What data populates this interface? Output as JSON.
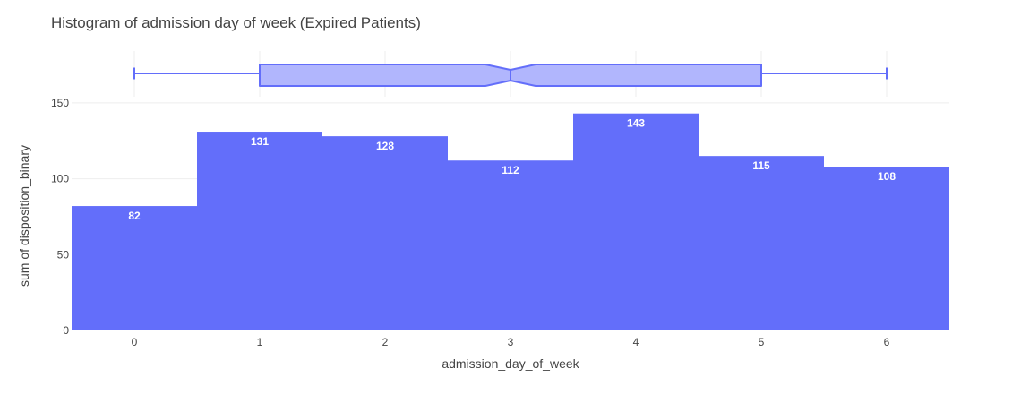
{
  "chart_data": {
    "type": "bar",
    "title": "Histogram of admission day of week (Expired Patients)",
    "xlabel": "admission_day_of_week",
    "ylabel": "sum of disposition_binary",
    "categories": [
      "0",
      "1",
      "2",
      "3",
      "4",
      "5",
      "6"
    ],
    "x": [
      0,
      1,
      2,
      3,
      4,
      5,
      6
    ],
    "values": [
      82,
      131,
      128,
      112,
      143,
      115,
      108
    ],
    "xlim": [
      -0.5,
      6.5
    ],
    "ylim": [
      0,
      150.5
    ],
    "yticks": [
      0,
      50,
      100,
      150
    ],
    "ytick_labels": [
      "0",
      "50",
      "100",
      "150"
    ],
    "grid": true,
    "bar_color": "#636efa",
    "bar_label_color": "#ffffff",
    "marginal_box": {
      "orientation": "horizontal",
      "min": 0,
      "q1": 1,
      "median": 3,
      "q3": 5,
      "max": 6,
      "notch_low": 2.8,
      "notch_high": 3.2,
      "fill_color": "#b1b6fd",
      "line_color": "#636efa"
    }
  }
}
